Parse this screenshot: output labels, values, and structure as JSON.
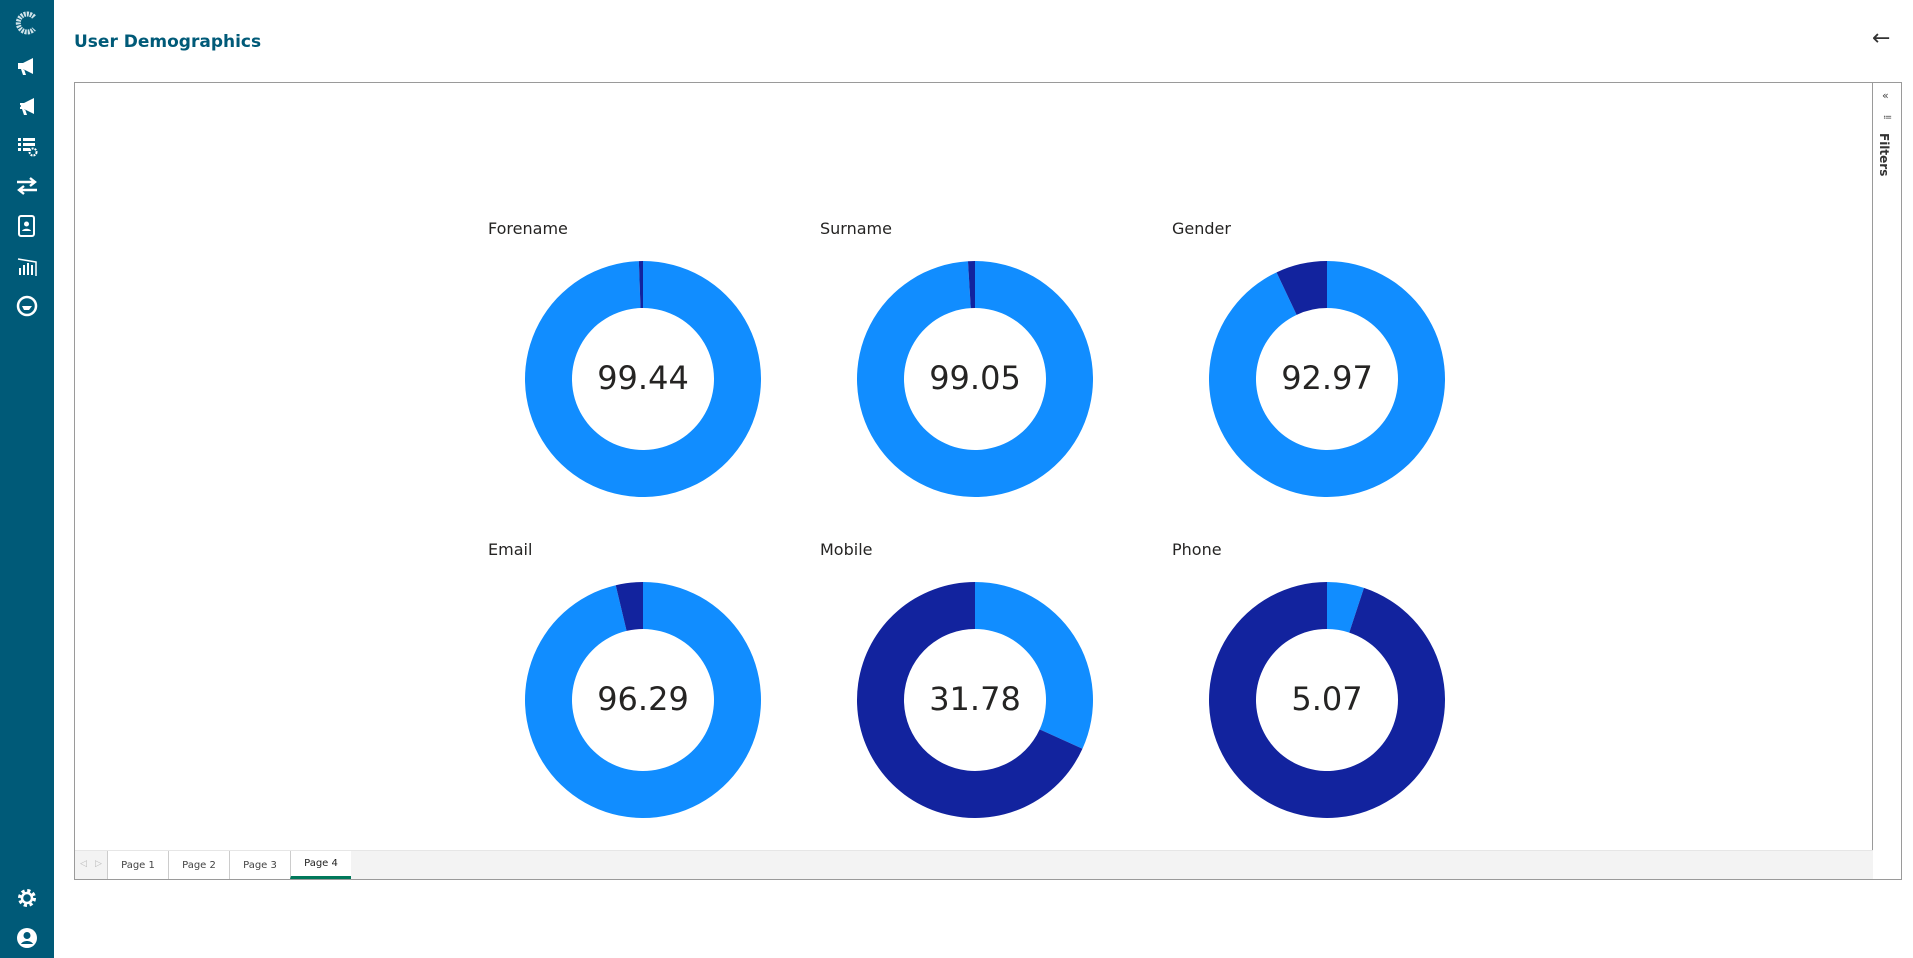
{
  "header": {
    "title": "User Demographics",
    "back_icon": "arrow-left-icon"
  },
  "sidebar": {
    "items": [
      "logo",
      "campaigns",
      "new-campaign",
      "list-settings",
      "transfers",
      "contacts",
      "reports",
      "support"
    ],
    "bottom": [
      "settings",
      "profile"
    ]
  },
  "filters": {
    "label": "Filters"
  },
  "colors": {
    "primary": "#005a78",
    "light": "#118dff",
    "dark": "#12239e",
    "tab_accent": "#00785a"
  },
  "chart_data": [
    {
      "type": "pie",
      "title": "Forename",
      "value": 99.44,
      "label": "99.44",
      "slices": [
        99.44,
        0.56
      ]
    },
    {
      "type": "pie",
      "title": "Surname",
      "value": 99.05,
      "label": "99.05",
      "slices": [
        99.05,
        0.95
      ]
    },
    {
      "type": "pie",
      "title": "Gender",
      "value": 92.97,
      "label": "92.97",
      "slices": [
        92.97,
        7.03
      ]
    },
    {
      "type": "pie",
      "title": "Email",
      "value": 96.29,
      "label": "96.29",
      "slices": [
        96.29,
        3.71
      ]
    },
    {
      "type": "pie",
      "title": "Mobile",
      "value": 31.78,
      "label": "31.78",
      "slices": [
        31.78,
        68.22
      ]
    },
    {
      "type": "pie",
      "title": "Phone",
      "value": 5.07,
      "label": "5.07",
      "slices": [
        5.07,
        94.93
      ]
    }
  ],
  "tabs": [
    "Page 1",
    "Page 2",
    "Page 3",
    "Page 4"
  ],
  "active_tab": 3
}
